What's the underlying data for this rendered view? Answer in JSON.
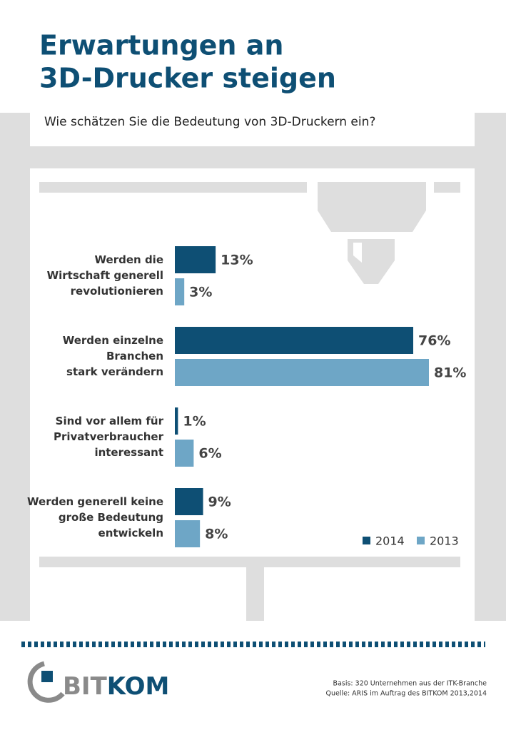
{
  "chart_data": {
    "type": "bar",
    "orientation": "horizontal",
    "title": [
      "Erwartungen an",
      "3D-Drucker steigen"
    ],
    "subtitle": "Wie schätzen Sie die Bedeutung von 3D-Druckern ein?",
    "categories": [
      [
        "Werden die",
        "Wirtschaft generell",
        "revolutionieren"
      ],
      [
        "Werden einzelne",
        "Branchen",
        "stark verändern"
      ],
      [
        "Sind vor allem für",
        "Privatverbraucher",
        "interessant"
      ],
      [
        "Werden generell keine",
        "große Bedeutung",
        "entwickeln"
      ]
    ],
    "series": [
      {
        "name": "2014",
        "color": "#0e4f74",
        "values": [
          13,
          76,
          1,
          9
        ],
        "value_labels": [
          "13%",
          "76%",
          "1%",
          "9%"
        ]
      },
      {
        "name": "2013",
        "color": "#6ea6c6",
        "values": [
          3,
          81,
          6,
          8
        ],
        "value_labels": [
          "3%",
          "81%",
          "6%",
          "8%"
        ]
      }
    ],
    "legend": "bottom-right",
    "logo": [
      "BIT",
      "KOM"
    ],
    "footnotes": [
      "Basis: 320 Unternehmen aus der ITK-Branche",
      "Quelle: ARIS im Auftrag des BITKOM 2013,2014"
    ]
  }
}
